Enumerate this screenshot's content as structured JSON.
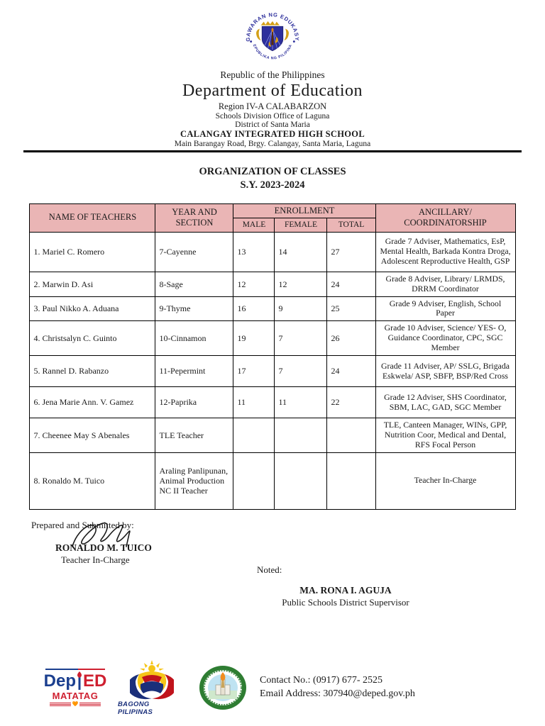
{
  "letterhead": {
    "seal": {
      "top_text": "KAGAWARAN NG EDUKASYON",
      "bottom_text": "REPUBLIKA NG PILIPINAS"
    },
    "republic": "Republic of the Philippines",
    "department": "Department of Education",
    "region": "Region IV-A CALABARZON",
    "division": "Schools Division Office of Laguna",
    "district": "District of Santa Maria",
    "school": "CALANGAY INTEGRATED HIGH SCHOOL",
    "address": "Main Barangay Road, Brgy. Calangay, Santa Maria, Laguna"
  },
  "title": {
    "line1": "ORGANIZATION OF CLASSES",
    "line2": "S.Y. 2023-2024"
  },
  "table": {
    "headers": {
      "name": "NAME OF TEACHERS",
      "year_section": "YEAR AND SECTION",
      "enrollment": "ENROLLMENT",
      "male": "MALE",
      "female": "FEMALE",
      "total": "TOTAL",
      "ancillary": "ANCILLARY/ COORDINATORSHIP"
    },
    "rows": [
      {
        "name": "1. Mariel C. Romero",
        "section": "7-Cayenne",
        "male": "13",
        "female": "14",
        "total": "27",
        "ancillary": "Grade 7 Adviser, Mathematics, EsP, Mental Health, Barkada Kontra Droga, Adolescent Reproductive Health, GSP",
        "height": 56
      },
      {
        "name": "2. Marwin D. Asi",
        "section": "8-Sage",
        "male": "12",
        "female": "12",
        "total": "24",
        "ancillary": "Grade 8 Adviser, Library/ LRMDS, DRRM Coordinator",
        "height": 33
      },
      {
        "name": "3. Paul Nikko A. Aduana",
        "section": "9-Thyme",
        "male": "16",
        "female": "9",
        "total": "25",
        "ancillary": "Grade 9 Adviser, English, School Paper",
        "height": 33
      },
      {
        "name": "4. Christsalyn C. Guinto",
        "section": "10-Cinnamon",
        "male": "19",
        "female": "7",
        "total": "26",
        "ancillary": "Grade 10 Adviser, Science/ YES- O, Guidance Coordinator, CPC, SGC Member",
        "height": 44
      },
      {
        "name": "5. Rannel D. Rabanzo",
        "section": "11-Pepermint",
        "male": "17",
        "female": "7",
        "total": "24",
        "ancillary": "Grade 11 Adviser, AP/ SSLG, Brigada Eskwela/ ASP, SBFP, BSP/Red Cross",
        "height": 44
      },
      {
        "name": "6. Jena Marie Ann. V. Gamez",
        "section": "12-Paprika",
        "male": "11",
        "female": "11",
        "total": "22",
        "ancillary": "Grade 12 Adviser, SHS Coordinator, SBM, LAC, GAD, SGC Member",
        "height": 44
      },
      {
        "name": "7. Cheenee May S Abenales",
        "section": "TLE Teacher",
        "male": "",
        "female": "",
        "total": "",
        "ancillary": "TLE, Canteen Manager, WINs, GPP, Nutrition Coor, Medical and Dental, RFS Focal Person",
        "height": 42
      },
      {
        "name": "8. Ronaldo M. Tuico",
        "section": "Araling Panlipunan, Animal Production NC II Teacher",
        "male": "",
        "female": "",
        "total": "",
        "ancillary": "Teacher In-Charge",
        "height": 80
      }
    ]
  },
  "signatories": {
    "prepared_label": "Prepared and Submitted by:",
    "prepared_name": "RONALDO M. TUICO",
    "prepared_title": "Teacher In-Charge",
    "noted_label": "Noted:",
    "noted_name": "MA. RONA I. AGUJA",
    "noted_title": "Public Schools District Supervisor"
  },
  "footer": {
    "deped": {
      "part1": "Dep",
      "part2": "ED",
      "tagline": "MATATAG"
    },
    "bagong_pilipinas": "BAGONG PILIPINAS",
    "contact_no": "Contact No.: (0917) 677- 2525",
    "email": "Email Address: 307940@deped.gov.ph"
  },
  "colors": {
    "table_header_bg": "#eab5b5",
    "deped_blue": "#1b3f8f",
    "deped_red": "#cf2030",
    "seal_blue": "#2d2f9c",
    "seal_gold": "#d4a017",
    "school_seal_green": "#2e7d32"
  }
}
